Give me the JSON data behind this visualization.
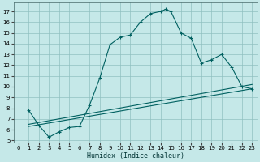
{
  "xlabel": "Humidex (Indice chaleur)",
  "bg_color": "#c5e8e8",
  "grid_color": "#90c0c0",
  "line_color": "#006060",
  "xlim": [
    -0.5,
    23.5
  ],
  "ylim": [
    4.8,
    17.8
  ],
  "xticks": [
    0,
    1,
    2,
    3,
    4,
    5,
    6,
    7,
    8,
    9,
    10,
    11,
    12,
    13,
    14,
    15,
    16,
    17,
    18,
    19,
    20,
    21,
    22,
    23
  ],
  "yticks": [
    5,
    6,
    7,
    8,
    9,
    10,
    11,
    12,
    13,
    14,
    15,
    16,
    17
  ],
  "curve_x": [
    1,
    2,
    3,
    4,
    5,
    6,
    7,
    8,
    9,
    10,
    11,
    12,
    13,
    14,
    14.5,
    15,
    16,
    17,
    18,
    19,
    20,
    21,
    22,
    23
  ],
  "curve_y": [
    7.8,
    6.4,
    5.3,
    5.8,
    6.2,
    6.3,
    8.3,
    10.8,
    13.9,
    14.6,
    14.8,
    16.0,
    16.8,
    17.0,
    17.2,
    17.0,
    15.0,
    14.5,
    12.2,
    12.5,
    13.0,
    11.8,
    10.0,
    9.8
  ],
  "line2_x": [
    1,
    23
  ],
  "line2_y": [
    6.3,
    9.8
  ],
  "line3_x": [
    1,
    23
  ],
  "line3_y": [
    6.5,
    10.2
  ],
  "xlabel_fontsize": 6,
  "tick_fontsize": 5
}
